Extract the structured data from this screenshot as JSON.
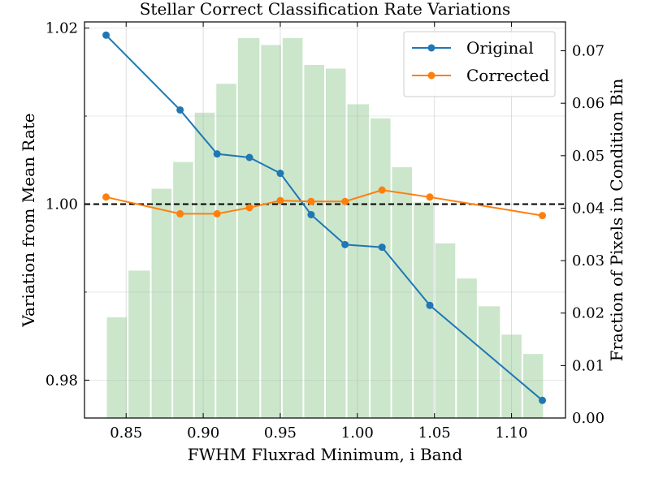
{
  "chart_data": {
    "type": "line",
    "title": "Stellar Correct Classification Rate Variations",
    "xlabel": "FWHM Fluxrad Minimum, i Band",
    "ylabel": "Variation from Mean Rate",
    "y2label": "Fraction of Pixels in Condition Bin",
    "xlim": [
      0.823,
      1.135
    ],
    "ylim": [
      0.9757,
      1.0207
    ],
    "y2lim": [
      0.0,
      0.0755
    ],
    "xticks": [
      "0.85",
      "0.90",
      "0.95",
      "1.00",
      "1.05",
      "1.10"
    ],
    "yticks": [
      "0.98",
      "1.00",
      "1.02"
    ],
    "y2ticks": [
      "0.00",
      "0.01",
      "0.02",
      "0.03",
      "0.04",
      "0.05",
      "0.06",
      "0.07"
    ],
    "reference_line": 1.0,
    "grid": true,
    "legend_position": "top-right",
    "series": [
      {
        "name": "Original",
        "color": "#1f77b4",
        "x": [
          0.837,
          0.885,
          0.909,
          0.93,
          0.95,
          0.97,
          0.992,
          1.016,
          1.047,
          1.12
        ],
        "values": [
          1.0192,
          1.0107,
          1.0057,
          1.0053,
          1.0035,
          0.9988,
          0.9954,
          0.9951,
          0.9885,
          0.9777
        ]
      },
      {
        "name": "Corrected",
        "color": "#ff7f0e",
        "x": [
          0.837,
          0.885,
          0.909,
          0.93,
          0.95,
          0.97,
          0.992,
          1.016,
          1.047,
          1.12
        ],
        "values": [
          1.0008,
          0.9989,
          0.9989,
          0.9996,
          1.0004,
          1.0003,
          1.0003,
          1.0016,
          1.0008,
          0.9987
        ]
      }
    ],
    "histogram": {
      "color": "#a9d5a9",
      "edges": [
        0.837,
        0.851,
        0.866,
        0.88,
        0.894,
        0.908,
        0.922,
        0.937,
        0.951,
        0.965,
        0.979,
        0.993,
        1.008,
        1.022,
        1.036,
        1.05,
        1.064,
        1.078,
        1.093,
        1.107,
        1.121
      ],
      "values": [
        0.0192,
        0.0281,
        0.0437,
        0.0488,
        0.0582,
        0.0637,
        0.0724,
        0.0711,
        0.0724,
        0.0673,
        0.0666,
        0.0598,
        0.0571,
        0.0478,
        0.0411,
        0.0333,
        0.0266,
        0.0213,
        0.0159,
        0.0122
      ]
    }
  }
}
